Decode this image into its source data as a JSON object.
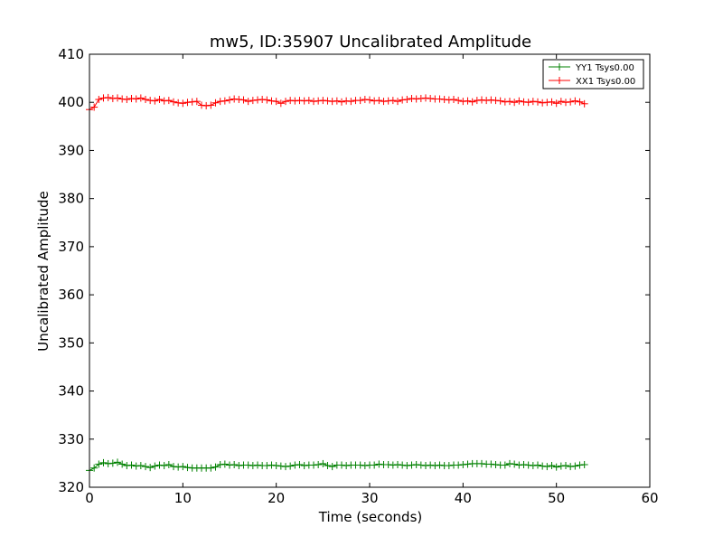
{
  "chart_data": {
    "type": "line",
    "title": "mw5, ID:35907 Uncalibrated Amplitude",
    "xlabel": "Time (seconds)",
    "ylabel": "Uncalibrated Amplitude",
    "xlim": [
      0,
      60
    ],
    "ylim": [
      320,
      410
    ],
    "xticks": [
      "0",
      "10",
      "20",
      "30",
      "40",
      "50",
      "60"
    ],
    "yticks": [
      "320",
      "330",
      "340",
      "350",
      "360",
      "370",
      "380",
      "390",
      "400",
      "410"
    ],
    "grid": false,
    "legend_position": "top-right",
    "marker": "+",
    "series": [
      {
        "name": "YY1 Tsys0.00",
        "color": "#008000",
        "x": [
          0.0,
          0.5,
          1.0,
          1.5,
          2.0,
          2.5,
          3.0,
          3.5,
          4.0,
          4.5,
          5.0,
          5.5,
          6.0,
          6.5,
          7.0,
          7.5,
          8.0,
          8.5,
          9.0,
          9.5,
          10.0,
          10.5,
          11.0,
          11.5,
          12.0,
          12.5,
          13.0,
          13.5,
          14.0,
          14.5,
          15.0,
          15.5,
          16.0,
          16.5,
          17.0,
          17.5,
          18.0,
          18.5,
          19.0,
          19.5,
          20.0,
          20.5,
          21.0,
          21.5,
          22.0,
          22.5,
          23.0,
          23.5,
          24.0,
          24.5,
          25.0,
          25.5,
          26.0,
          26.5,
          27.0,
          27.5,
          28.0,
          28.5,
          29.0,
          29.5,
          30.0,
          30.5,
          31.0,
          31.5,
          32.0,
          32.5,
          33.0,
          33.5,
          34.0,
          34.5,
          35.0,
          35.5,
          36.0,
          36.5,
          37.0,
          37.5,
          38.0,
          38.5,
          39.0,
          39.5,
          40.0,
          40.5,
          41.0,
          41.5,
          42.0,
          42.5,
          43.0,
          43.5,
          44.0,
          44.5,
          45.0,
          45.5,
          46.0,
          46.5,
          47.0,
          47.5,
          48.0,
          48.5,
          49.0,
          49.5,
          50.0,
          50.5,
          51.0,
          51.5,
          52.0,
          52.5,
          53.0
        ],
        "values": [
          323.5,
          324.0,
          324.8,
          325.1,
          324.9,
          325.0,
          325.2,
          324.8,
          324.5,
          324.6,
          324.4,
          324.5,
          324.3,
          324.1,
          324.4,
          324.6,
          324.5,
          324.7,
          324.3,
          324.2,
          324.3,
          324.1,
          324.0,
          324.0,
          324.0,
          324.0,
          324.0,
          324.2,
          324.7,
          324.8,
          324.6,
          324.7,
          324.5,
          324.6,
          324.6,
          324.5,
          324.6,
          324.5,
          324.5,
          324.6,
          324.5,
          324.4,
          324.3,
          324.4,
          324.6,
          324.7,
          324.5,
          324.6,
          324.6,
          324.7,
          324.9,
          324.5,
          324.3,
          324.6,
          324.6,
          324.5,
          324.6,
          324.6,
          324.6,
          324.5,
          324.6,
          324.6,
          324.8,
          324.7,
          324.7,
          324.6,
          324.7,
          324.6,
          324.5,
          324.6,
          324.7,
          324.6,
          324.5,
          324.6,
          324.5,
          324.6,
          324.5,
          324.5,
          324.6,
          324.6,
          324.7,
          324.8,
          324.9,
          324.9,
          324.9,
          324.8,
          324.8,
          324.7,
          324.6,
          324.6,
          324.9,
          324.8,
          324.6,
          324.7,
          324.6,
          324.5,
          324.6,
          324.4,
          324.3,
          324.5,
          324.2,
          324.4,
          324.5,
          324.3,
          324.4,
          324.6,
          324.7
        ]
      },
      {
        "name": "XX1 Tsys0.00",
        "color": "#ff0000",
        "x": [
          0.0,
          0.5,
          1.0,
          1.5,
          2.0,
          2.5,
          3.0,
          3.5,
          4.0,
          4.5,
          5.0,
          5.5,
          6.0,
          6.5,
          7.0,
          7.5,
          8.0,
          8.5,
          9.0,
          9.5,
          10.0,
          10.5,
          11.0,
          11.5,
          12.0,
          12.5,
          13.0,
          13.5,
          14.0,
          14.5,
          15.0,
          15.5,
          16.0,
          16.5,
          17.0,
          17.5,
          18.0,
          18.5,
          19.0,
          19.5,
          20.0,
          20.5,
          21.0,
          21.5,
          22.0,
          22.5,
          23.0,
          23.5,
          24.0,
          24.5,
          25.0,
          25.5,
          26.0,
          26.5,
          27.0,
          27.5,
          28.0,
          28.5,
          29.0,
          29.5,
          30.0,
          30.5,
          31.0,
          31.5,
          32.0,
          32.5,
          33.0,
          33.5,
          34.0,
          34.5,
          35.0,
          35.5,
          36.0,
          36.5,
          37.0,
          37.5,
          38.0,
          38.5,
          39.0,
          39.5,
          40.0,
          40.5,
          41.0,
          41.5,
          42.0,
          42.5,
          43.0,
          43.5,
          44.0,
          44.5,
          45.0,
          45.5,
          46.0,
          46.5,
          47.0,
          47.5,
          48.0,
          48.5,
          49.0,
          49.5,
          50.0,
          50.5,
          51.0,
          51.5,
          52.0,
          52.5,
          53.0
        ],
        "values": [
          398.5,
          399.0,
          400.6,
          400.9,
          401.0,
          400.8,
          400.9,
          400.7,
          400.6,
          400.8,
          400.7,
          400.9,
          400.6,
          400.4,
          400.3,
          400.6,
          400.3,
          400.4,
          400.1,
          399.9,
          399.8,
          400.0,
          400.1,
          400.2,
          399.4,
          399.3,
          399.4,
          399.9,
          400.2,
          400.3,
          400.5,
          400.7,
          400.6,
          400.5,
          400.2,
          400.4,
          400.5,
          400.6,
          400.5,
          400.3,
          400.2,
          399.8,
          400.2,
          400.4,
          400.3,
          400.4,
          400.3,
          400.4,
          400.2,
          400.3,
          400.4,
          400.3,
          400.2,
          400.3,
          400.1,
          400.3,
          400.2,
          400.4,
          400.4,
          400.6,
          400.5,
          400.3,
          400.4,
          400.2,
          400.3,
          400.4,
          400.2,
          400.5,
          400.6,
          400.8,
          400.7,
          400.8,
          400.9,
          400.8,
          400.7,
          400.7,
          400.6,
          400.5,
          400.6,
          400.4,
          400.2,
          400.3,
          400.1,
          400.4,
          400.5,
          400.4,
          400.5,
          400.4,
          400.3,
          400.1,
          400.2,
          400.0,
          400.3,
          400.1,
          400.0,
          400.2,
          400.1,
          399.9,
          400.0,
          400.1,
          399.8,
          400.2,
          400.0,
          400.1,
          400.3,
          400.1,
          399.7
        ]
      }
    ]
  }
}
